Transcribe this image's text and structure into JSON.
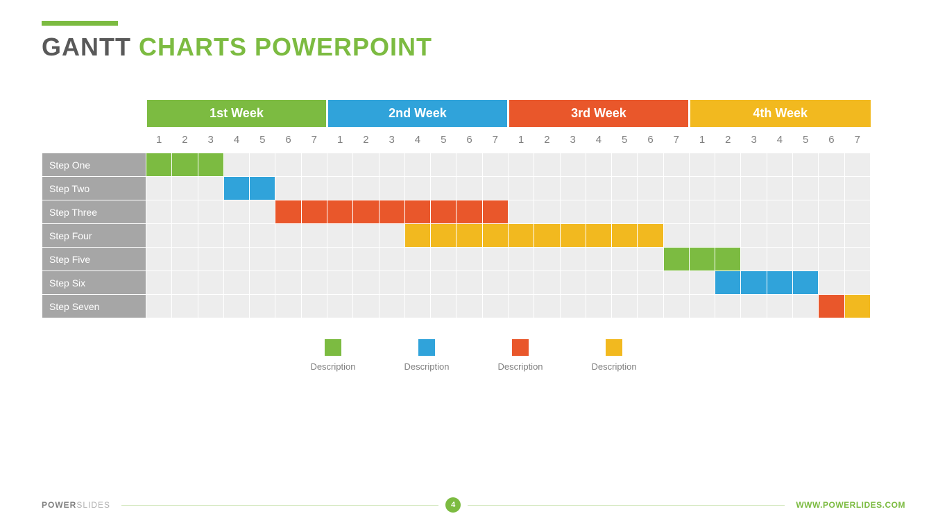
{
  "title": {
    "dark": "GANTT",
    "light": "CHARTS POWERPOINT",
    "accent_color": "#7cbb41"
  },
  "colors": {
    "green": "#7cbb41",
    "blue": "#30a3da",
    "orange": "#e9572b",
    "yellow": "#f2b91f",
    "cell_bg": "#ededed",
    "row_label_bg": "#a6a6a6",
    "day_text": "#808080"
  },
  "gantt": {
    "type": "gantt",
    "days_per_week": 7,
    "total_days": 28,
    "weeks": [
      {
        "label": "1st Week",
        "color": "#7cbb41"
      },
      {
        "label": "2nd Week",
        "color": "#30a3da"
      },
      {
        "label": "3rd Week",
        "color": "#e9572b"
      },
      {
        "label": "4th Week",
        "color": "#f2b91f"
      }
    ],
    "day_labels": [
      "1",
      "2",
      "3",
      "4",
      "5",
      "6",
      "7"
    ],
    "rows": [
      {
        "label": "Step One",
        "bars": [
          {
            "start": 1,
            "end": 3,
            "color": "#7cbb41"
          }
        ]
      },
      {
        "label": "Step Two",
        "bars": [
          {
            "start": 4,
            "end": 5,
            "color": "#30a3da"
          }
        ]
      },
      {
        "label": "Step Three",
        "bars": [
          {
            "start": 6,
            "end": 14,
            "color": "#e9572b"
          }
        ]
      },
      {
        "label": "Step Four",
        "bars": [
          {
            "start": 11,
            "end": 20,
            "color": "#f2b91f"
          }
        ]
      },
      {
        "label": "Step Five",
        "bars": [
          {
            "start": 21,
            "end": 23,
            "color": "#7cbb41"
          }
        ]
      },
      {
        "label": "Step Six",
        "bars": [
          {
            "start": 23,
            "end": 26,
            "color": "#30a3da"
          }
        ]
      },
      {
        "label": "Step Seven",
        "bars": [
          {
            "start": 27,
            "end": 27,
            "color": "#e9572b"
          },
          {
            "start": 28,
            "end": 28,
            "color": "#f2b91f"
          }
        ]
      }
    ]
  },
  "legend": [
    {
      "color": "#7cbb41",
      "label": "Description"
    },
    {
      "color": "#30a3da",
      "label": "Description"
    },
    {
      "color": "#e9572b",
      "label": "Description"
    },
    {
      "color": "#f2b91f",
      "label": "Description"
    }
  ],
  "footer": {
    "brand_bold": "POWER",
    "brand_light": "SLIDES",
    "page_number": "4",
    "url": "WWW.POWERLIDES.COM",
    "line_color": "#cfe5b8",
    "badge_color": "#7cbb41"
  }
}
